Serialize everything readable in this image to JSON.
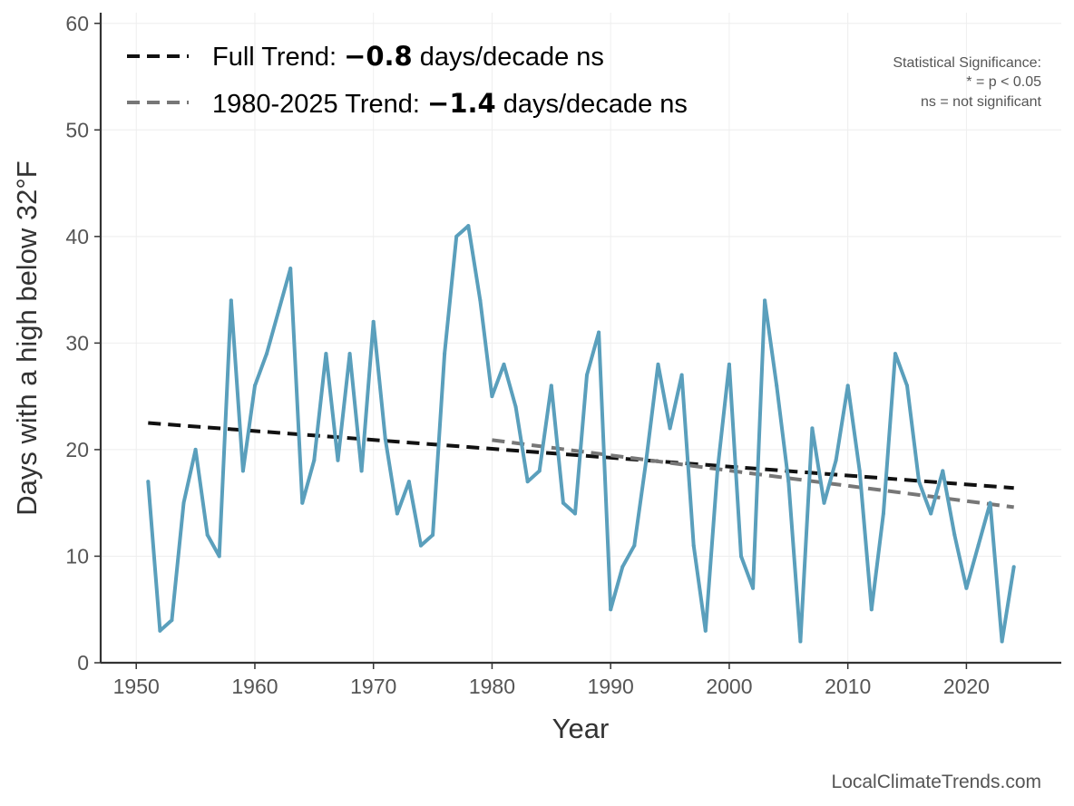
{
  "chart_data": {
    "type": "line",
    "xlabel": "Year",
    "ylabel": "Days with a high below 32°F",
    "xlim": [
      1947,
      2028
    ],
    "ylim": [
      0,
      61
    ],
    "xticks": [
      1950,
      1960,
      1970,
      1980,
      1990,
      2000,
      2010,
      2020
    ],
    "yticks": [
      0,
      10,
      20,
      30,
      40,
      50,
      60
    ],
    "grid": true,
    "series": [
      {
        "color": "#5a9fbc",
        "x": [
          1951,
          1952,
          1953,
          1954,
          1955,
          1956,
          1957,
          1958,
          1959,
          1960,
          1961,
          1962,
          1963,
          1964,
          1965,
          1966,
          1967,
          1968,
          1969,
          1970,
          1971,
          1972,
          1973,
          1974,
          1975,
          1976,
          1977,
          1978,
          1979,
          1980,
          1981,
          1982,
          1983,
          1984,
          1985,
          1986,
          1987,
          1988,
          1989,
          1990,
          1991,
          1992,
          1993,
          1994,
          1995,
          1996,
          1997,
          1998,
          1999,
          2000,
          2001,
          2002,
          2003,
          2004,
          2005,
          2006,
          2007,
          2008,
          2009,
          2010,
          2011,
          2012,
          2013,
          2014,
          2015,
          2016,
          2017,
          2018,
          2019,
          2020,
          2021,
          2022,
          2023,
          2024
        ],
        "values": [
          17,
          3,
          4,
          15,
          20,
          12,
          10,
          34,
          18,
          26,
          29,
          33,
          37,
          15,
          19,
          29,
          19,
          29,
          18,
          32,
          21,
          14,
          17,
          11,
          12,
          29,
          40,
          41,
          34,
          25,
          28,
          24,
          17,
          18,
          26,
          15,
          14,
          27,
          31,
          5,
          9,
          11,
          19,
          28,
          22,
          27,
          11,
          3,
          18,
          28,
          10,
          7,
          34,
          26,
          17,
          2,
          22,
          15,
          19,
          26,
          18,
          5,
          14,
          29,
          26,
          17,
          14,
          18,
          12,
          7,
          11,
          15,
          2,
          9
        ]
      }
    ],
    "trend_lines": [
      {
        "x": [
          1951,
          2024
        ],
        "values": [
          22.5,
          16.4
        ],
        "color": "#111111"
      },
      {
        "x": [
          1980,
          2024
        ],
        "values": [
          20.9,
          14.6
        ],
        "color": "#777777"
      }
    ],
    "legend": {
      "placement": "top-left",
      "entries": [
        {
          "prefix": "Full Trend: ",
          "value": "−0.8",
          "suffix": " days/decade ns",
          "color": "#111111"
        },
        {
          "prefix": "1980-2025 Trend: ",
          "value": "−1.4",
          "suffix": " days/decade ns",
          "color": "#777777"
        }
      ]
    },
    "annotations": {
      "significance_title": "Statistical Significance:",
      "significance_line1": "* = p < 0.05",
      "significance_line2": "ns = not significant"
    }
  },
  "credit": "LocalClimateTrends.com"
}
